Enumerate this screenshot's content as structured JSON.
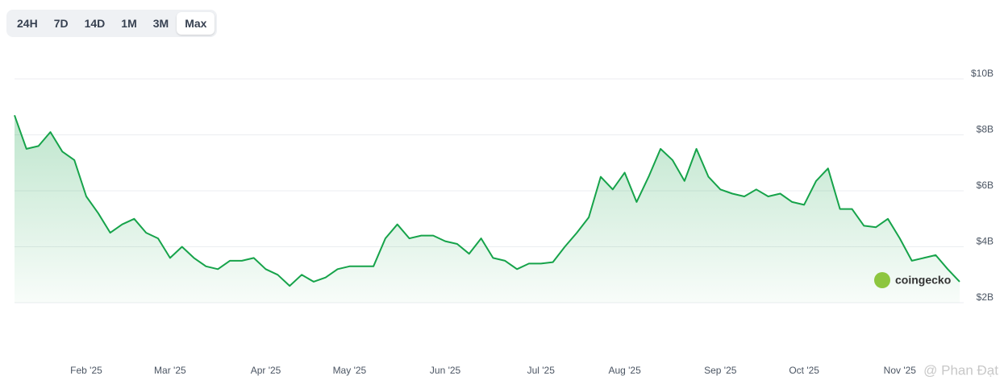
{
  "periods": [
    "24H",
    "7D",
    "14D",
    "1M",
    "3M",
    "Max"
  ],
  "selected_period": 5,
  "branding": "coingecko",
  "watermark": "@ Phan Đạt",
  "chart_data": {
    "type": "area",
    "categories": [
      null,
      null,
      null,
      null,
      null,
      null,
      "Feb '25",
      null,
      null,
      null,
      null,
      null,
      null,
      "Mar '25",
      null,
      null,
      null,
      null,
      null,
      null,
      null,
      "Apr '25",
      null,
      null,
      null,
      null,
      null,
      null,
      "May '25",
      null,
      null,
      null,
      null,
      null,
      null,
      null,
      "Jun '25",
      null,
      null,
      null,
      null,
      null,
      null,
      null,
      "Jul '25",
      null,
      null,
      null,
      null,
      null,
      null,
      "Aug '25",
      null,
      null,
      null,
      null,
      null,
      null,
      null,
      "Sep '25",
      null,
      null,
      null,
      null,
      null,
      null,
      "Oct '25",
      null,
      null,
      null,
      null,
      null,
      null,
      null,
      "Nov '25",
      null,
      null,
      null,
      null,
      null
    ],
    "series": [
      {
        "color": "#16a34a",
        "values": [
          8.7,
          7.5,
          7.6,
          8.1,
          7.4,
          7.1,
          5.8,
          5.2,
          4.5,
          4.8,
          5.0,
          4.5,
          4.3,
          3.6,
          4.0,
          3.6,
          3.3,
          3.2,
          3.5,
          3.5,
          3.6,
          3.2,
          3.0,
          2.6,
          3.0,
          2.75,
          2.9,
          3.2,
          3.3,
          3.3,
          3.3,
          4.3,
          4.8,
          4.3,
          4.4,
          4.4,
          4.2,
          4.1,
          3.75,
          4.3,
          3.6,
          3.5,
          3.2,
          3.4,
          3.4,
          3.45,
          4.0,
          4.5,
          5.05,
          6.5,
          6.05,
          6.65,
          5.6,
          6.5,
          7.5,
          7.1,
          6.35,
          7.5,
          6.5,
          6.05,
          5.9,
          5.8,
          6.05,
          5.8,
          5.9,
          5.6,
          5.5,
          6.35,
          6.8,
          5.35,
          5.35,
          4.75,
          4.7,
          5.0,
          4.3,
          3.5,
          3.6,
          3.7,
          3.2,
          2.75
        ]
      }
    ],
    "ylim": [
      2,
      10
    ],
    "yticks": [
      {
        "value": 2,
        "label": "$2B"
      },
      {
        "value": 4,
        "label": "$4B"
      },
      {
        "value": 6,
        "label": "$6B"
      },
      {
        "value": 8,
        "label": "$8B"
      },
      {
        "value": 10,
        "label": "$10B"
      }
    ],
    "grid": true
  }
}
